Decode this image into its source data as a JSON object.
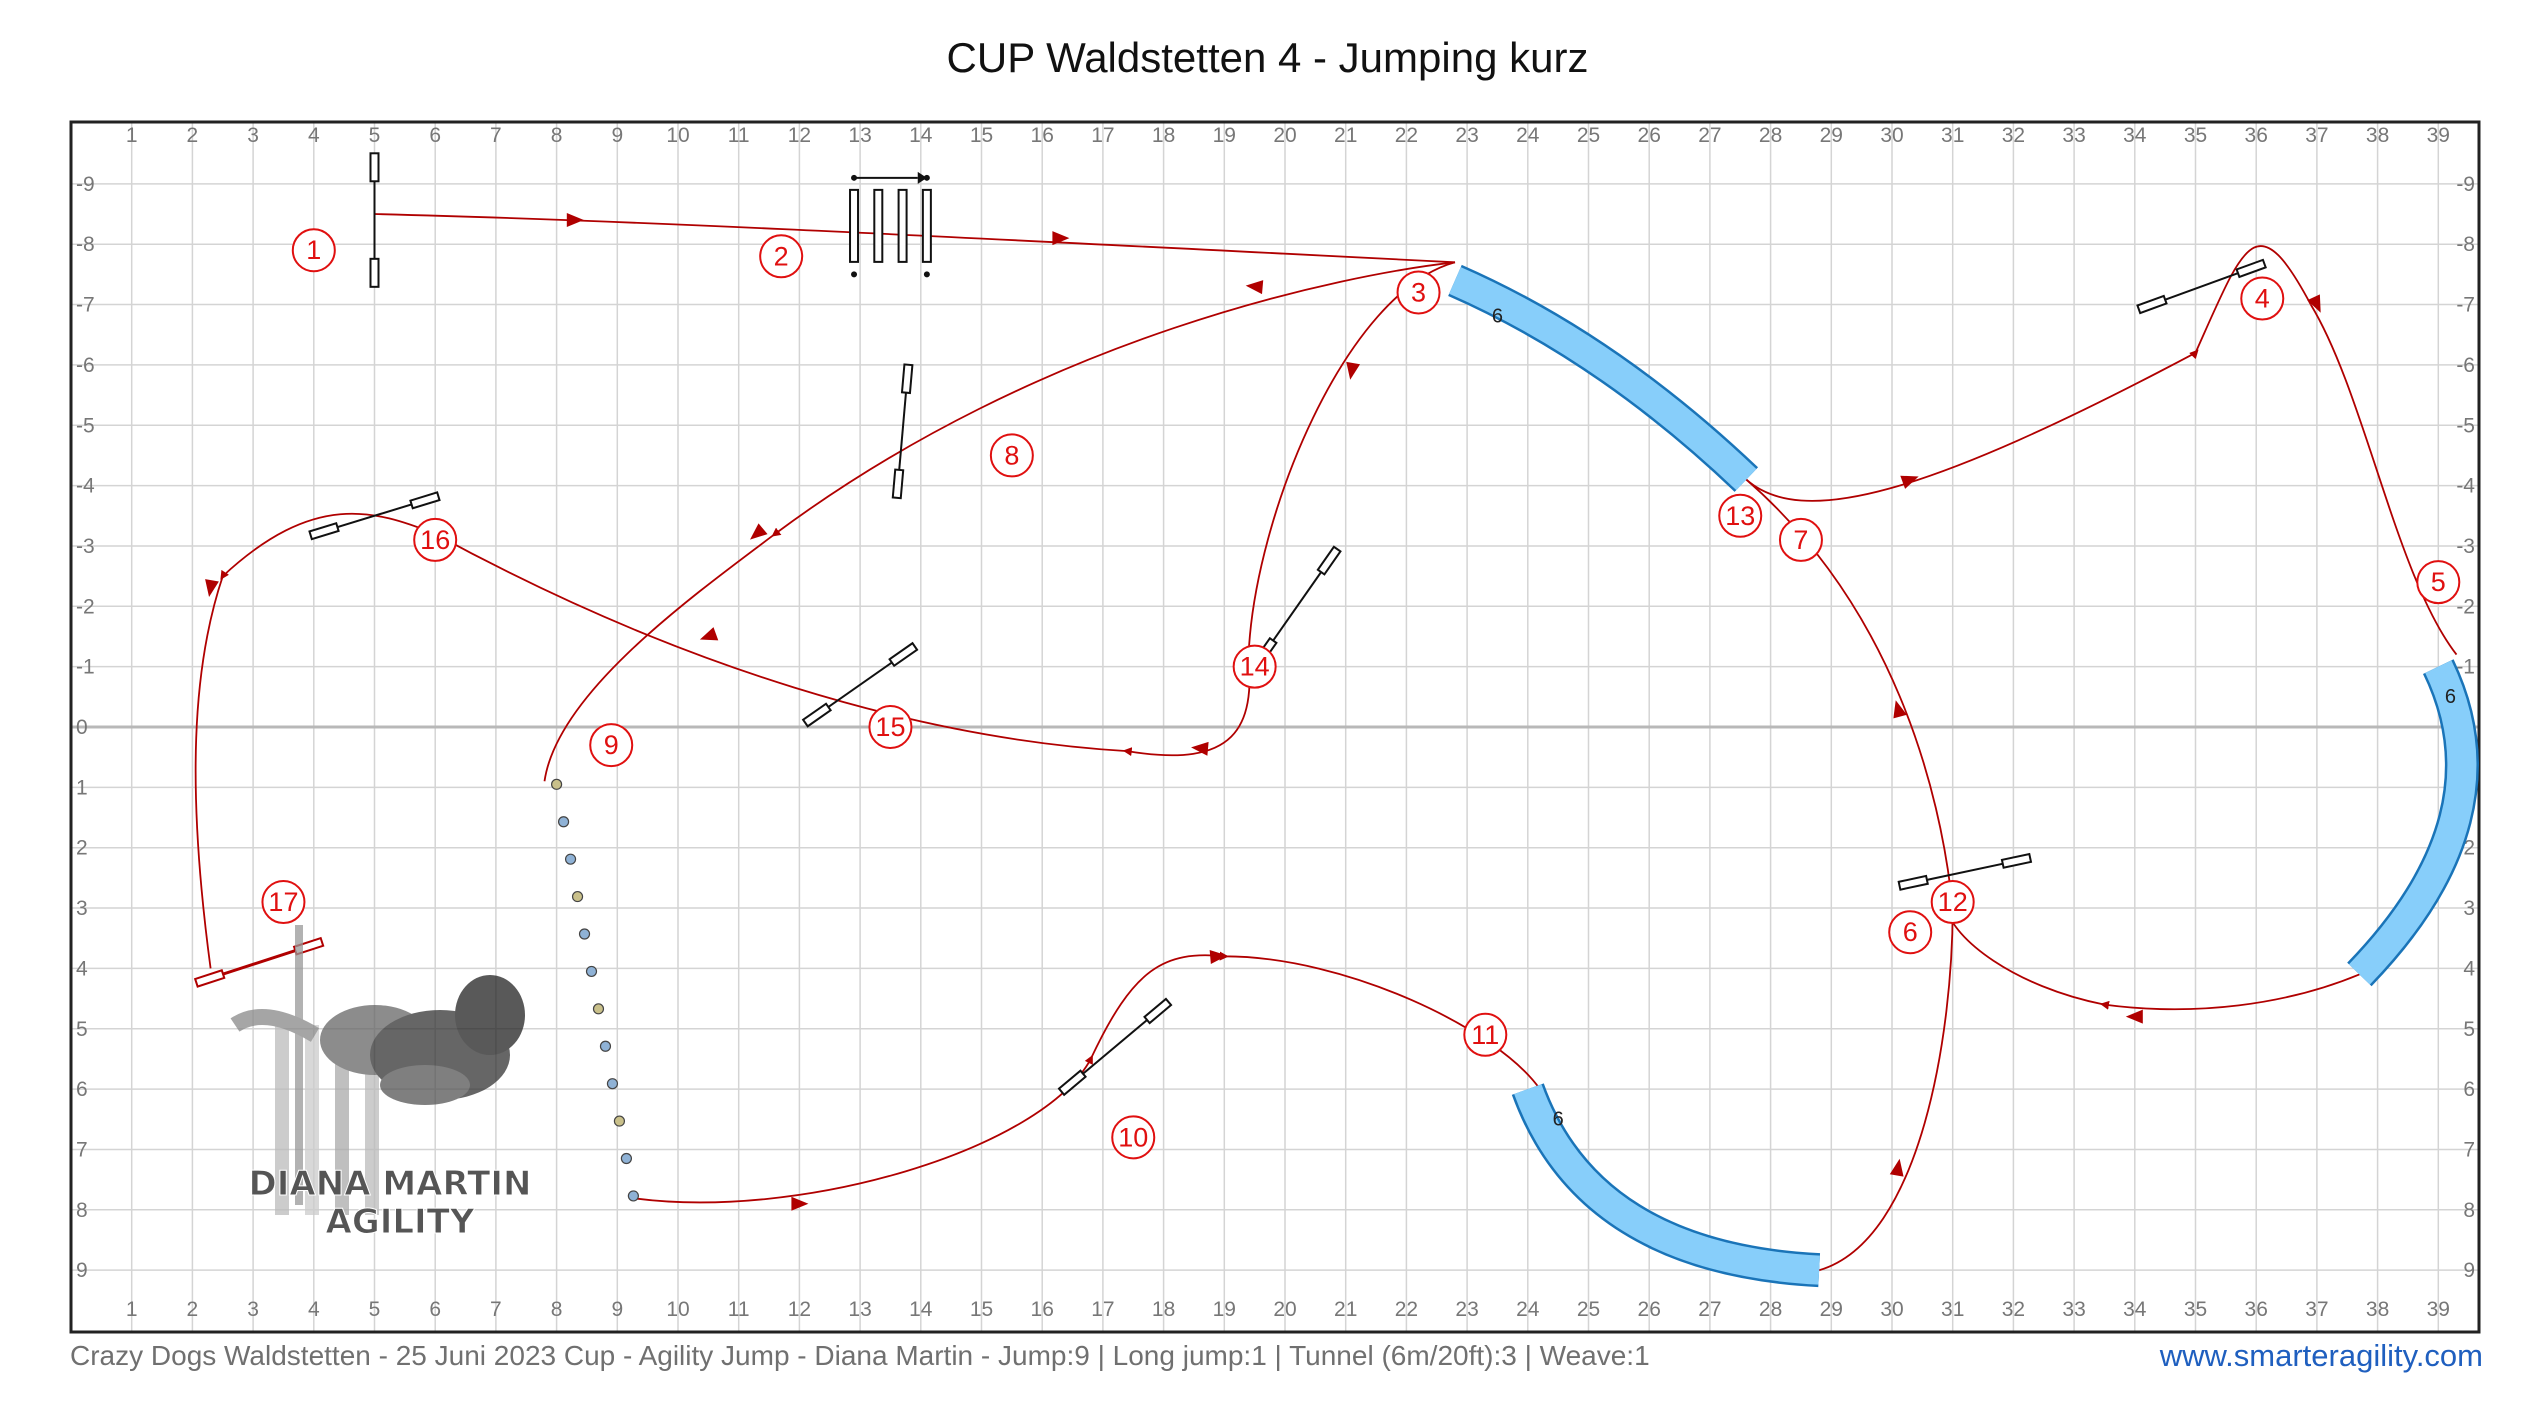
{
  "title": "CUP Waldstetten 4 - Jumping kurz",
  "footer": {
    "description": "Crazy Dogs Waldstetten - 25 Juni 2023 Cup - Agility Jump - Diana Martin - Jump:9 | Long jump:1 | Tunnel (6m/20ft):3 | Weave:1",
    "link": "www.smarteragility.com"
  },
  "watermark": {
    "line1": "DIANA MARTIN",
    "line2": "AGILITY"
  },
  "grid": {
    "x_labels": [
      "1",
      "2",
      "3",
      "4",
      "5",
      "6",
      "7",
      "8",
      "9",
      "10",
      "11",
      "12",
      "13",
      "14",
      "15",
      "16",
      "17",
      "18",
      "19",
      "20",
      "21",
      "22",
      "23",
      "24",
      "25",
      "26",
      "27",
      "28",
      "29",
      "30",
      "31",
      "32",
      "33",
      "34",
      "35",
      "36",
      "37",
      "38",
      "39"
    ],
    "y_labels": [
      "-9",
      "-8",
      "-7",
      "-6",
      "-5",
      "-4",
      "-3",
      "-2",
      "-1",
      "0",
      "1",
      "2",
      "3",
      "4",
      "5",
      "6",
      "7",
      "8",
      "9"
    ]
  },
  "tunnel_length_label": "6",
  "numbers": [
    {
      "label": "1",
      "x": 4,
      "y": -7.9
    },
    {
      "label": "2",
      "x": 11.7,
      "y": -7.8
    },
    {
      "label": "3",
      "x": 22.2,
      "y": -7.2
    },
    {
      "label": "4",
      "x": 36.1,
      "y": -7.1
    },
    {
      "label": "5",
      "x": 39,
      "y": -2.4
    },
    {
      "label": "6",
      "x": 30.3,
      "y": 3.4
    },
    {
      "label": "7",
      "x": 28.5,
      "y": -3.1
    },
    {
      "label": "8",
      "x": 15.5,
      "y": -4.5
    },
    {
      "label": "9",
      "x": 8.9,
      "y": 0.3
    },
    {
      "label": "10",
      "x": 17.5,
      "y": 6.8
    },
    {
      "label": "11",
      "x": 23.3,
      "y": 5.1
    },
    {
      "label": "12",
      "x": 31,
      "y": 2.9
    },
    {
      "label": "13",
      "x": 27.5,
      "y": -3.5
    },
    {
      "label": "14",
      "x": 19.5,
      "y": -1
    },
    {
      "label": "15",
      "x": 13.5,
      "y": 0
    },
    {
      "label": "16",
      "x": 6,
      "y": -3.1
    },
    {
      "label": "17",
      "x": 3.5,
      "y": 2.9
    }
  ],
  "colors": {
    "path": "#b00000",
    "number": "#e01010",
    "tunnel_fill": "#87cefa",
    "tunnel_stroke": "#1a74b8",
    "grid": "#d4d4d4"
  }
}
